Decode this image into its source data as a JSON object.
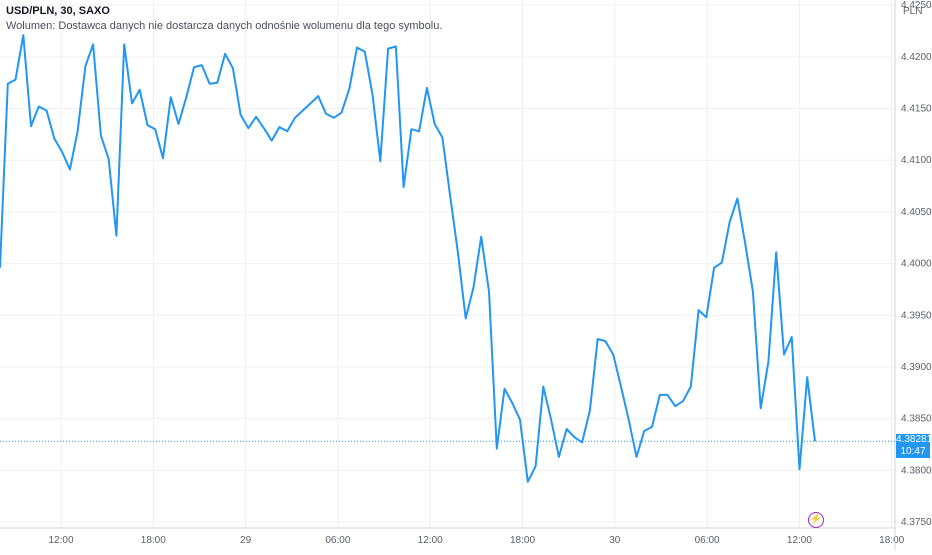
{
  "legend": {
    "symbol": "USD/PLN, 30, SAXO",
    "volume_note": "Wolumen: Dostawca danych nie dostarcza danych odnośnie wolumenu dla tego symbolu."
  },
  "price_axis": {
    "currency": "PLN"
  },
  "last_price": {
    "value": "4.38281",
    "countdown": "10:47",
    "color": "#2196f3"
  },
  "events_icon": "lightning-icon",
  "chart_data": {
    "type": "line",
    "color": "#2196f3",
    "ylim": [
      4.375,
      4.4255
    ],
    "grid": true,
    "y_ticks": [
      "4.42500",
      "4.42000",
      "4.41500",
      "4.41000",
      "4.40500",
      "4.40000",
      "4.39500",
      "4.39000",
      "4.38500",
      "4.38000",
      "4.37500"
    ],
    "x_ticks": [
      "12:00",
      "18:00",
      "29",
      "06:00",
      "12:00",
      "18:00",
      "30",
      "06:00",
      "12:00",
      "18:00"
    ],
    "series": [
      {
        "values": [
          4.3996,
          4.4174,
          4.4178,
          4.4221,
          4.4133,
          4.4152,
          4.4148,
          4.4121,
          4.4108,
          4.4091,
          4.4128,
          4.4191,
          4.4212,
          4.4124,
          4.4101,
          4.4027,
          4.4212,
          4.4155,
          4.4168,
          4.4134,
          4.413,
          4.4102,
          4.4161,
          4.4135,
          4.4161,
          4.419,
          4.4192,
          4.4174,
          4.4175,
          4.4203,
          4.4189,
          4.4144,
          4.4131,
          4.4142,
          4.4131,
          4.4119,
          4.4132,
          4.4128,
          4.4141,
          4.4148,
          4.4155,
          4.4162,
          4.4145,
          4.4141,
          4.4146,
          4.4169,
          4.4209,
          4.4205,
          4.4163,
          4.4099,
          4.4208,
          4.421,
          4.4074,
          4.413,
          4.4128,
          4.417,
          4.4135,
          4.4122,
          4.4065,
          4.401,
          4.3947,
          4.3977,
          4.4026,
          4.3973,
          4.3821,
          4.3879,
          4.3865,
          4.3849,
          4.3789,
          4.3804,
          4.3881,
          4.3849,
          4.3813,
          4.384,
          4.3832,
          4.3827,
          4.3858,
          4.3927,
          4.3925,
          4.3912,
          4.3881,
          4.3849,
          4.3813,
          4.3838,
          4.3842,
          4.3873,
          4.3873,
          4.3862,
          4.3867,
          4.3881,
          4.3955,
          4.3948,
          4.3996,
          4.4001,
          4.404,
          4.4063,
          4.402,
          4.3973,
          4.386,
          4.3905,
          4.4011,
          4.3912,
          4.3929,
          4.3801,
          4.389,
          4.3828
        ]
      }
    ]
  }
}
